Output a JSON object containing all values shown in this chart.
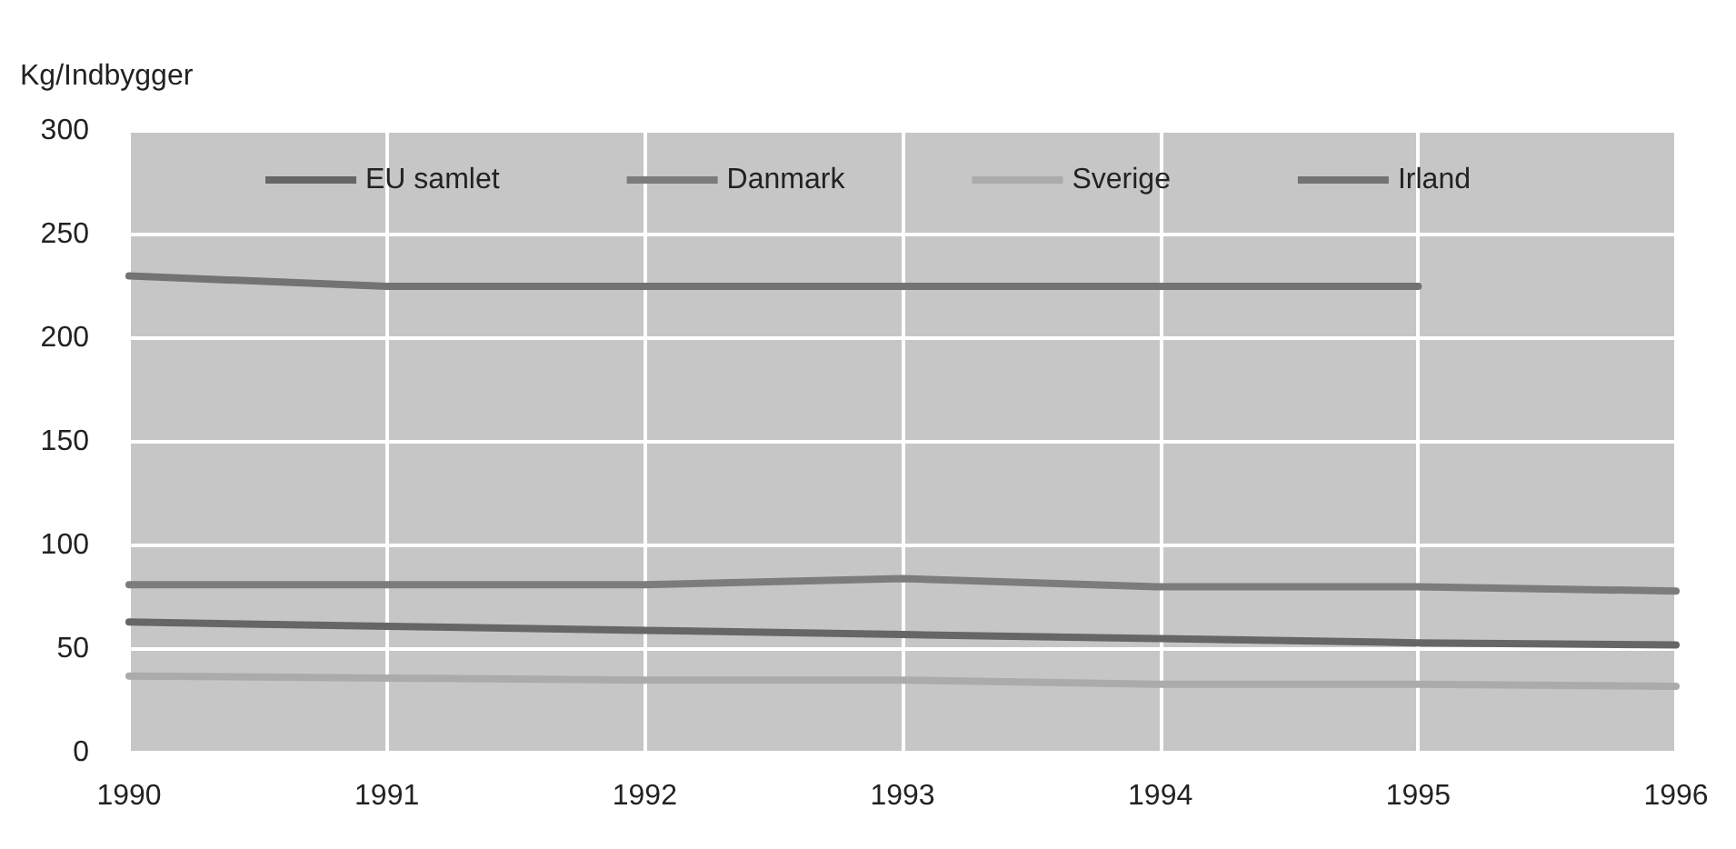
{
  "chart_data": {
    "type": "line",
    "ylabel": "Kg/Indbygger",
    "x": [
      1990,
      1991,
      1992,
      1993,
      1994,
      1995,
      1996
    ],
    "series": [
      {
        "name": "EU samlet",
        "color": "#666666",
        "values": [
          63,
          61,
          59,
          57,
          55,
          53,
          52
        ]
      },
      {
        "name": "Danmark",
        "color": "#7c7c7c",
        "values": [
          81,
          81,
          81,
          84,
          80,
          80,
          78
        ]
      },
      {
        "name": "Sverige",
        "color": "#ababab",
        "values": [
          37,
          36,
          35,
          35,
          33,
          33,
          32
        ]
      },
      {
        "name": "Irland",
        "color": "#737373",
        "values": [
          230,
          225,
          225,
          225,
          225,
          225,
          null
        ]
      }
    ],
    "xlim": [
      1990,
      1996
    ],
    "xticks": [
      1990,
      1991,
      1992,
      1993,
      1994,
      1995,
      1996
    ],
    "ylim": [
      0,
      300
    ],
    "yticks": [
      0,
      50,
      100,
      150,
      200,
      250,
      300
    ],
    "grid": true,
    "legend": "top",
    "marker": "none",
    "line_style": "solid"
  }
}
